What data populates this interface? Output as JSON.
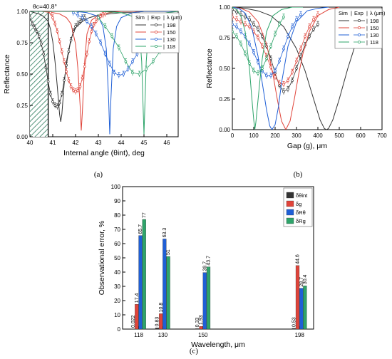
{
  "colors": {
    "black": "#333333",
    "red": "#e0443a",
    "blue": "#1f5fd6",
    "green": "#2ea46a",
    "hatch": "#2a7a5a"
  },
  "chart_data": [
    {
      "type": "line",
      "panel_label": "(a)",
      "xlabel": "Internal angle (θint), deg",
      "ylabel": "Reflectance",
      "xlim": [
        40,
        46.5
      ],
      "ylim": [
        0,
        1.0
      ],
      "x_ticks": [
        "40",
        "41",
        "42",
        "43",
        "44",
        "45",
        "46"
      ],
      "y_ticks": [
        "0.00",
        "0.25",
        "0.50",
        "0.75",
        "1.00"
      ],
      "annotation": "θc=40.8°",
      "critical_angle": 40.8,
      "legend": {
        "header": [
          "Sim",
          "Exp",
          "λ (μm)"
        ],
        "entries": [
          "198",
          "150",
          "130",
          "118"
        ],
        "placement": "top-right"
      },
      "series": [
        {
          "name": "198",
          "color_key": "black",
          "sim": {
            "x": [
              40.0,
              40.2,
              40.4,
              40.6,
              40.8,
              40.9,
              41.0,
              41.1,
              41.2,
              41.3,
              41.35,
              41.4,
              41.5,
              41.6,
              41.8,
              42.0,
              42.3,
              42.6,
              43.0,
              43.5,
              44.0,
              44.5,
              45.0,
              45.5,
              46.0,
              46.5
            ],
            "y": [
              1.0,
              0.99,
              0.98,
              0.96,
              0.92,
              0.86,
              0.76,
              0.6,
              0.4,
              0.18,
              0.12,
              0.18,
              0.42,
              0.6,
              0.78,
              0.87,
              0.92,
              0.95,
              0.97,
              0.98,
              0.99,
              0.99,
              1.0,
              1.0,
              1.0,
              1.0
            ]
          },
          "exp": {
            "x": [
              40.0,
              40.1,
              40.2,
              40.3,
              40.4,
              40.5,
              40.6,
              40.7,
              40.8,
              40.9,
              41.0,
              41.1,
              41.2,
              41.3,
              41.4,
              41.5,
              41.6,
              41.7,
              41.8,
              41.9,
              42.0,
              42.1,
              42.2,
              42.3,
              42.4
            ],
            "y": [
              0.95,
              0.9,
              0.87,
              0.84,
              0.8,
              0.74,
              0.66,
              0.55,
              0.44,
              0.34,
              0.28,
              0.25,
              0.24,
              0.27,
              0.34,
              0.45,
              0.57,
              0.68,
              0.77,
              0.84,
              0.88,
              0.9,
              0.92,
              0.94,
              0.95
            ]
          }
        },
        {
          "name": "150",
          "color_key": "red",
          "sim": {
            "x": [
              40.0,
              40.5,
              41.0,
              41.3,
              41.6,
              41.8,
              42.0,
              42.1,
              42.2,
              42.25,
              42.3,
              42.4,
              42.5,
              42.7,
              43.0,
              43.5,
              44.0,
              44.5,
              45.0,
              46.0,
              46.5
            ],
            "y": [
              1.0,
              1.0,
              0.99,
              0.98,
              0.95,
              0.9,
              0.74,
              0.55,
              0.25,
              0.05,
              0.2,
              0.6,
              0.82,
              0.93,
              0.97,
              0.99,
              1.0,
              1.0,
              1.0,
              1.0,
              1.0
            ]
          },
          "exp": {
            "x": [
              40.9,
              41.0,
              41.1,
              41.2,
              41.3,
              41.4,
              41.5,
              41.6,
              41.7,
              41.8,
              41.9,
              42.0,
              42.1,
              42.2,
              42.3,
              42.4,
              42.5,
              42.6,
              42.7,
              42.8,
              42.9,
              43.0,
              43.1,
              43.2,
              43.3
            ],
            "y": [
              0.99,
              0.95,
              0.9,
              0.84,
              0.76,
              0.68,
              0.6,
              0.52,
              0.45,
              0.4,
              0.37,
              0.36,
              0.37,
              0.4,
              0.47,
              0.56,
              0.66,
              0.76,
              0.84,
              0.89,
              0.92,
              0.95,
              0.96,
              0.97,
              0.98
            ]
          }
        },
        {
          "name": "130",
          "color_key": "blue",
          "sim": {
            "x": [
              40.0,
              41.0,
              42.0,
              42.5,
              43.0,
              43.2,
              43.35,
              43.45,
              43.5,
              43.55,
              43.65,
              43.8,
              44.0,
              44.5,
              45.0,
              46.0,
              46.5
            ],
            "y": [
              1.0,
              1.0,
              1.0,
              0.99,
              0.96,
              0.88,
              0.7,
              0.3,
              0.02,
              0.3,
              0.7,
              0.88,
              0.95,
              0.99,
              1.0,
              1.0,
              1.0
            ]
          },
          "exp": {
            "x": [
              41.9,
              42.1,
              42.3,
              42.5,
              42.7,
              42.9,
              43.1,
              43.3,
              43.5,
              43.7,
              43.9,
              44.1,
              44.3,
              44.5,
              44.7,
              44.9,
              45.1,
              45.3
            ],
            "y": [
              0.99,
              0.97,
              0.95,
              0.92,
              0.88,
              0.82,
              0.75,
              0.66,
              0.58,
              0.51,
              0.49,
              0.5,
              0.54,
              0.6,
              0.66,
              0.72,
              0.76,
              0.79
            ]
          }
        },
        {
          "name": "118",
          "color_key": "green",
          "sim": {
            "x": [
              40.0,
              41.0,
              42.0,
              43.0,
              44.0,
              44.5,
              44.8,
              44.9,
              44.97,
              45.0,
              45.03,
              45.1,
              45.2,
              45.5,
              46.0,
              46.5
            ],
            "y": [
              1.0,
              1.0,
              1.0,
              1.0,
              0.99,
              0.96,
              0.85,
              0.6,
              0.2,
              0.02,
              0.2,
              0.6,
              0.85,
              0.96,
              0.99,
              1.0
            ]
          },
          "exp": {
            "x": [
              43.0,
              43.3,
              43.6,
              43.9,
              44.2,
              44.5,
              44.8,
              45.1,
              45.4,
              45.7,
              46.0,
              46.3
            ],
            "y": [
              0.95,
              0.88,
              0.8,
              0.71,
              0.6,
              0.51,
              0.5,
              0.54,
              0.6,
              0.68,
              0.76,
              0.82
            ]
          }
        }
      ]
    },
    {
      "type": "line",
      "panel_label": "(b)",
      "xlabel": "Gap (g), μm",
      "ylabel": "Reflectance",
      "xlim": [
        0,
        700
      ],
      "ylim": [
        0,
        1.0
      ],
      "x_ticks": [
        "0",
        "100",
        "200",
        "300",
        "400",
        "500",
        "600",
        "700"
      ],
      "y_ticks": [
        "0.00",
        "0.25",
        "0.50",
        "0.75",
        "1.00"
      ],
      "legend": {
        "header": [
          "Sim",
          "Exp",
          "λ (μm)"
        ],
        "entries": [
          "198",
          "150",
          "130",
          "118"
        ],
        "placement": "top-right"
      },
      "series": [
        {
          "name": "198",
          "color_key": "black",
          "sim": {
            "x": [
              0,
              60,
              120,
              180,
              240,
              300,
              340,
              380,
              410,
              430,
              440,
              450,
              470,
              500,
              540,
              580,
              620,
              660,
              700
            ],
            "y": [
              1.0,
              0.99,
              0.97,
              0.93,
              0.84,
              0.66,
              0.48,
              0.25,
              0.08,
              0.01,
              0.0,
              0.01,
              0.08,
              0.25,
              0.5,
              0.72,
              0.86,
              0.94,
              0.98
            ]
          },
          "exp": {
            "x": [
              0,
              20,
              40,
              60,
              80,
              100,
              120,
              140,
              160,
              180,
              200,
              220,
              240,
              260,
              280,
              300,
              320,
              340,
              360,
              380,
              400
            ],
            "y": [
              0.98,
              0.96,
              0.94,
              0.92,
              0.9,
              0.86,
              0.82,
              0.76,
              0.68,
              0.58,
              0.46,
              0.36,
              0.31,
              0.33,
              0.4,
              0.5,
              0.6,
              0.69,
              0.76,
              0.82,
              0.86
            ]
          }
        },
        {
          "name": "150",
          "color_key": "red",
          "sim": {
            "x": [
              0,
              40,
              80,
              120,
              160,
              190,
              210,
              230,
              250,
              270,
              290,
              310,
              330,
              360,
              400,
              450,
              500
            ],
            "y": [
              1.0,
              0.99,
              0.96,
              0.88,
              0.7,
              0.45,
              0.25,
              0.07,
              0.0,
              0.07,
              0.25,
              0.45,
              0.62,
              0.8,
              0.93,
              0.98,
              1.0
            ]
          },
          "exp": {
            "x": [
              0,
              20,
              40,
              60,
              80,
              100,
              120,
              140,
              160,
              180,
              200,
              220,
              240,
              260,
              280,
              300,
              320,
              340,
              360,
              380,
              400
            ],
            "y": [
              0.92,
              0.9,
              0.88,
              0.86,
              0.84,
              0.8,
              0.75,
              0.68,
              0.6,
              0.51,
              0.43,
              0.38,
              0.37,
              0.4,
              0.47,
              0.56,
              0.66,
              0.76,
              0.84,
              0.9,
              0.94
            ]
          }
        },
        {
          "name": "130",
          "color_key": "blue",
          "sim": {
            "x": [
              0,
              30,
              60,
              90,
              120,
              140,
              160,
              175,
              185,
              200,
              215,
              230,
              260,
              300,
              350,
              400,
              450
            ],
            "y": [
              1.0,
              0.99,
              0.95,
              0.84,
              0.6,
              0.38,
              0.16,
              0.03,
              0.0,
              0.04,
              0.18,
              0.38,
              0.68,
              0.88,
              0.97,
              0.99,
              1.0
            ]
          },
          "exp": {
            "x": [
              0,
              20,
              40,
              60,
              80,
              100,
              120,
              140,
              160,
              180,
              200,
              220,
              240,
              260,
              280,
              300,
              320
            ],
            "y": [
              0.86,
              0.84,
              0.8,
              0.76,
              0.7,
              0.63,
              0.55,
              0.48,
              0.44,
              0.44,
              0.48,
              0.56,
              0.66,
              0.76,
              0.84,
              0.9,
              0.94
            ]
          }
        },
        {
          "name": "118",
          "color_key": "green",
          "sim": {
            "x": [
              0,
              20,
              40,
              60,
              80,
              90,
              100,
              105,
              110,
              120,
              130,
              140,
              160,
              190,
              230,
              280,
              330
            ],
            "y": [
              1.0,
              0.98,
              0.93,
              0.8,
              0.5,
              0.28,
              0.08,
              0.0,
              0.06,
              0.24,
              0.42,
              0.58,
              0.8,
              0.93,
              0.98,
              1.0,
              1.0
            ]
          },
          "exp": {
            "x": [
              0,
              20,
              40,
              60,
              80,
              100,
              120,
              140,
              160,
              180,
              200,
              220,
              240
            ],
            "y": [
              0.8,
              0.76,
              0.7,
              0.62,
              0.54,
              0.48,
              0.46,
              0.5,
              0.58,
              0.68,
              0.78,
              0.86,
              0.92
            ]
          }
        }
      ]
    },
    {
      "type": "bar",
      "panel_label": "(c)",
      "xlabel": "Wavelength, μm",
      "ylabel": "Observational error, %",
      "categories": [
        "118",
        "130",
        "150",
        "198"
      ],
      "category_values": [
        118,
        130,
        150,
        198
      ],
      "xlim": [
        110,
        205
      ],
      "ylim": [
        0,
        100
      ],
      "y_ticks": [
        "0",
        "10",
        "20",
        "30",
        "40",
        "50",
        "60",
        "70",
        "80",
        "90",
        "100"
      ],
      "legend": {
        "entries": [
          "δθint",
          "δg",
          "δRθ",
          "δRg"
        ],
        "placement": "top-right"
      },
      "series": [
        {
          "name": "δθint",
          "color_key": "black",
          "values": [
            0.022,
            0.83,
            0.33,
            0.53
          ],
          "labels": [
            "0.022",
            "0.83",
            "0.33",
            "0.53"
          ]
        },
        {
          "name": "δg",
          "color_key": "red",
          "values": [
            17.4,
            10.8,
            1.93,
            44.6
          ],
          "labels": [
            "17.4",
            "10.8",
            "1.93",
            "44.6"
          ]
        },
        {
          "name": "δRθ",
          "color_key": "blue",
          "values": [
            65.7,
            63.3,
            39.7,
            28.7
          ],
          "labels": [
            "65.7",
            "63.3",
            "39.7",
            "28.7"
          ]
        },
        {
          "name": "δRg",
          "color_key": "green",
          "values": [
            77,
            51,
            43.7,
            30.4
          ],
          "labels": [
            "77",
            "51",
            "43.7",
            "30.4"
          ]
        }
      ]
    }
  ]
}
